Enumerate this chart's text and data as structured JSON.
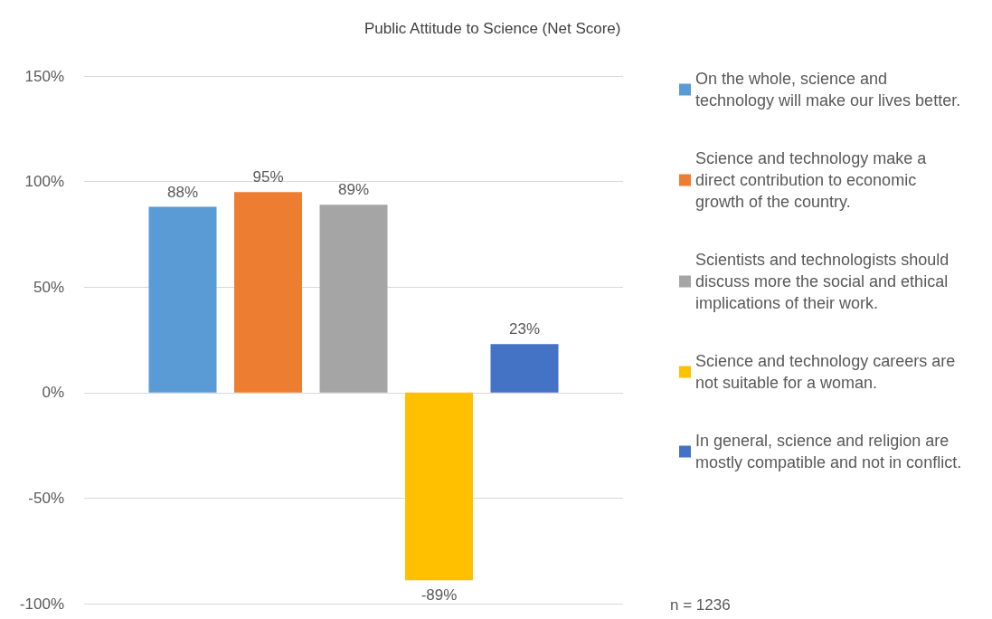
{
  "chart_data": {
    "type": "bar",
    "title": "Public Attitude to Science (Net Score)",
    "categories": [
      null
    ],
    "series": [
      {
        "name": "On the whole, science and technology will make our lives better.",
        "color": "#5b9bd5",
        "values": [
          88
        ],
        "value_labels": [
          "88%"
        ]
      },
      {
        "name": "Science and technology make a direct contribution to economic growth of the country.",
        "color": "#ed7d31",
        "values": [
          95
        ],
        "value_labels": [
          "95%"
        ]
      },
      {
        "name": "Scientists and technologists should discuss more the social and ethical implications of their work.",
        "color": "#a5a5a5",
        "values": [
          89
        ],
        "value_labels": [
          "89%"
        ]
      },
      {
        "name": "Science and technology careers are not suitable for a woman.",
        "color": "#ffc000",
        "values": [
          -89
        ],
        "value_labels": [
          "-89%"
        ]
      },
      {
        "name": "In general, science and religion are mostly compatible and not in conflict.",
        "color": "#4472c4",
        "values": [
          23
        ],
        "value_labels": [
          "23%"
        ]
      }
    ],
    "ylim": [
      -100,
      150
    ],
    "yticks": [
      {
        "value": -100,
        "label": "-100%"
      },
      {
        "value": -50,
        "label": "-50%"
      },
      {
        "value": 0,
        "label": "0%"
      },
      {
        "value": 50,
        "label": "50%"
      },
      {
        "value": 100,
        "label": "100%"
      },
      {
        "value": 150,
        "label": "150%"
      }
    ],
    "grid": "y",
    "legend": "right",
    "annotations": [
      "n = 1236"
    ]
  }
}
